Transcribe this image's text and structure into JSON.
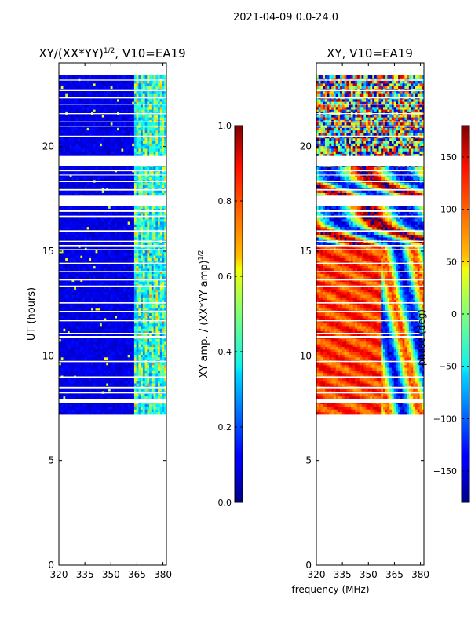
{
  "figure": {
    "suptitle": "2021-04-09 0.0-24.0",
    "shared_xlabel": "frequency (MHz)"
  },
  "chart_data": [
    {
      "type": "heatmap",
      "title": "XY/(XX*YY)",
      "title_sup": "1/2",
      "title_suffix": ", V10=EA19",
      "xlabel": "",
      "ylabel": "UT (hours)",
      "xlim": [
        320,
        382
      ],
      "ylim": [
        0,
        24
      ],
      "xticks": [
        320,
        335,
        350,
        365,
        380
      ],
      "yticks": [
        0,
        5,
        10,
        15,
        20
      ],
      "data_range_ut": [
        7.2,
        23.4
      ],
      "rfi_band_mhz": [
        363,
        382
      ],
      "colorbar": {
        "label": "XY amp. / (XX*YY amp)",
        "label_sup": "1/2",
        "range": [
          0.0,
          1.0
        ],
        "ticks": [
          0.0,
          0.2,
          0.4,
          0.6,
          0.8,
          1.0
        ],
        "tick_labels": [
          "0.0",
          "0.2",
          "0.4",
          "0.6",
          "0.8",
          "1.0"
        ]
      }
    },
    {
      "type": "heatmap",
      "title": "XY, V10=EA19",
      "xlabel": "frequency (MHz)",
      "ylabel": "",
      "xlim": [
        320,
        382
      ],
      "ylim": [
        0,
        24
      ],
      "xticks": [
        320,
        335,
        350,
        365,
        380
      ],
      "yticks": [
        0,
        5,
        10,
        15,
        20
      ],
      "data_range_ut": [
        7.2,
        23.4
      ],
      "colorbar": {
        "label": "phase (deg)",
        "range": [
          -180,
          180
        ],
        "ticks": [
          -150,
          -100,
          -50,
          0,
          50,
          100,
          150
        ],
        "tick_labels": [
          "−150",
          "−100",
          "−50",
          "0",
          "50",
          "100",
          "150"
        ]
      }
    }
  ],
  "gaps_ut": [
    [
      7.75,
      7.95
    ],
    [
      8.2,
      8.28
    ],
    [
      8.45,
      8.52
    ],
    [
      8.95,
      9.02
    ],
    [
      9.7,
      9.76
    ],
    [
      10.85,
      10.95
    ],
    [
      11.05,
      11.1
    ],
    [
      11.65,
      11.7
    ],
    [
      12.1,
      12.15
    ],
    [
      12.5,
      12.56
    ],
    [
      13.3,
      13.36
    ],
    [
      13.6,
      13.65
    ],
    [
      14.0,
      14.05
    ],
    [
      14.4,
      14.45
    ],
    [
      15.05,
      15.1
    ],
    [
      15.2,
      15.3
    ],
    [
      15.45,
      15.5
    ],
    [
      15.9,
      16.0
    ],
    [
      16.6,
      16.7
    ],
    [
      16.88,
      16.95
    ],
    [
      17.15,
      17.65
    ],
    [
      17.9,
      17.97
    ],
    [
      18.3,
      18.35
    ],
    [
      18.62,
      18.66
    ],
    [
      18.82,
      18.88
    ],
    [
      19.05,
      19.55
    ],
    [
      20.45,
      20.52
    ],
    [
      20.95,
      21.0
    ],
    [
      21.15,
      21.2
    ],
    [
      21.55,
      21.6
    ],
    [
      22.0,
      22.05
    ],
    [
      22.3,
      22.36
    ],
    [
      22.65,
      22.7
    ],
    [
      23.15,
      23.2
    ]
  ]
}
